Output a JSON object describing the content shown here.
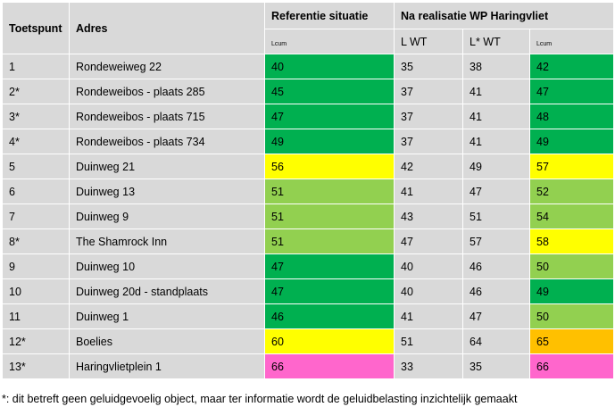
{
  "colors": {
    "header_bg": "#d9d9d9",
    "cell_bg": "#d9d9d9",
    "dark_green": "#00b050",
    "light_green": "#92d050",
    "yellow": "#ffff00",
    "orange": "#ffc000",
    "pink": "#ff66cc"
  },
  "header": {
    "col_toetspunt": "Toetspunt",
    "col_adres": "Adres",
    "group_referentie": "Referentie  situatie",
    "group_na": "Na realisatie WP Haringvliet",
    "sub_ref_main": "L",
    "sub_ref_sub": "cum",
    "sub_lwt": "L WT",
    "sub_lstar": "L* WT",
    "sub_na_main": "L",
    "sub_na_sub": "cum"
  },
  "rows": [
    {
      "toetspunt": "1",
      "adres": "Rondeweiweg 22",
      "ref": "40",
      "ref_color": "dark_green",
      "lwt": "35",
      "lstar": "38",
      "na": "42",
      "na_color": "dark_green"
    },
    {
      "toetspunt": "2*",
      "adres": "Rondeweibos - plaats 285",
      "ref": "45",
      "ref_color": "dark_green",
      "lwt": "37",
      "lstar": "41",
      "na": "47",
      "na_color": "dark_green"
    },
    {
      "toetspunt": "3*",
      "adres": "Rondeweibos - plaats 715",
      "ref": "47",
      "ref_color": "dark_green",
      "lwt": "37",
      "lstar": "41",
      "na": "48",
      "na_color": "dark_green"
    },
    {
      "toetspunt": "4*",
      "adres": "Rondeweibos - plaats 734",
      "ref": "49",
      "ref_color": "dark_green",
      "lwt": "37",
      "lstar": "41",
      "na": "49",
      "na_color": "dark_green"
    },
    {
      "toetspunt": "5",
      "adres": "Duinweg 21",
      "ref": "56",
      "ref_color": "yellow",
      "lwt": "42",
      "lstar": "49",
      "na": "57",
      "na_color": "yellow"
    },
    {
      "toetspunt": "6",
      "adres": "Duinweg 13",
      "ref": "51",
      "ref_color": "light_green",
      "lwt": "41",
      "lstar": "47",
      "na": "52",
      "na_color": "light_green"
    },
    {
      "toetspunt": "7",
      "adres": "Duinweg 9",
      "ref": "51",
      "ref_color": "light_green",
      "lwt": "43",
      "lstar": "51",
      "na": "54",
      "na_color": "light_green"
    },
    {
      "toetspunt": "8*",
      "adres": "The Shamrock Inn",
      "ref": "51",
      "ref_color": "light_green",
      "lwt": "47",
      "lstar": "57",
      "na": "58",
      "na_color": "yellow"
    },
    {
      "toetspunt": "9",
      "adres": "Duinweg 10",
      "ref": "47",
      "ref_color": "dark_green",
      "lwt": "40",
      "lstar": "46",
      "na": "50",
      "na_color": "light_green"
    },
    {
      "toetspunt": "10",
      "adres": "Duinweg 20d - standplaats",
      "ref": "47",
      "ref_color": "dark_green",
      "lwt": "40",
      "lstar": "46",
      "na": "49",
      "na_color": "dark_green"
    },
    {
      "toetspunt": "11",
      "adres": "Duinweg 1",
      "ref": "46",
      "ref_color": "dark_green",
      "lwt": "41",
      "lstar": "47",
      "na": "50",
      "na_color": "light_green"
    },
    {
      "toetspunt": "12*",
      "adres": "Boelies",
      "ref": "60",
      "ref_color": "yellow",
      "lwt": "51",
      "lstar": "64",
      "na": "65",
      "na_color": "orange"
    },
    {
      "toetspunt": "13*",
      "adres": "Haringvlietplein 1",
      "ref": "66",
      "ref_color": "pink",
      "lwt": "33",
      "lstar": "35",
      "na": "66",
      "na_color": "pink"
    }
  ],
  "footnote": "*: dit betreft geen geluidgevoelig object, maar ter informatie wordt de geluidbelasting inzichtelijk gemaakt"
}
